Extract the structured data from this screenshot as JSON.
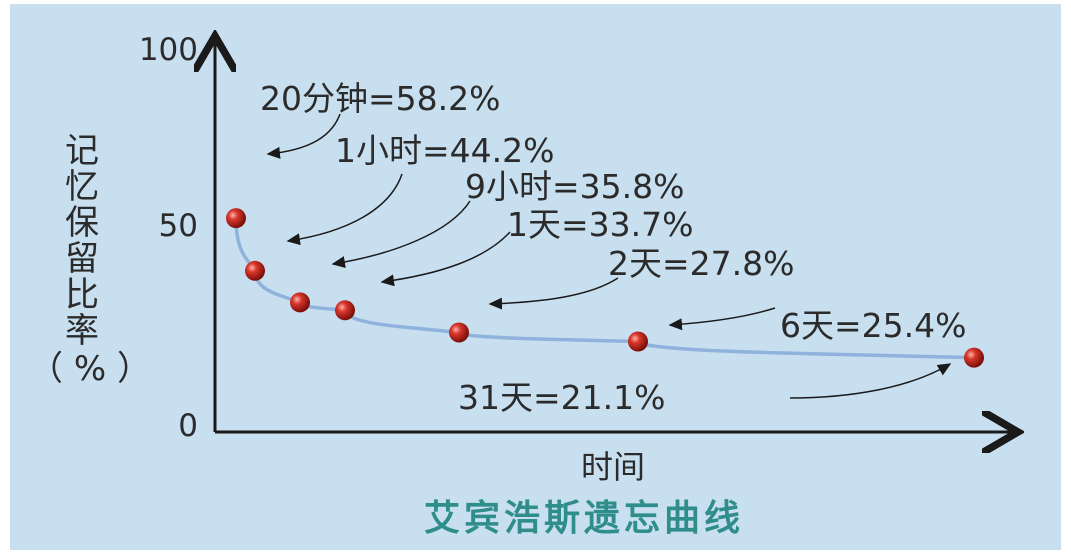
{
  "chart_data": {
    "type": "line",
    "title": "艾宾浩斯遗忘曲线",
    "xlabel": "时间",
    "ylabel_chars": [
      "记",
      "忆",
      "保",
      "留",
      "比",
      "率"
    ],
    "ylabel_unit": "（ % ）",
    "yticks": [
      "0",
      "50",
      "100"
    ],
    "ylim": [
      0,
      100
    ],
    "x": [
      "20分钟",
      "1小时",
      "9小时",
      "1天",
      "2天",
      "6天",
      "31天"
    ],
    "y": [
      58.2,
      44.2,
      35.8,
      33.7,
      27.8,
      25.4,
      21.1
    ],
    "annotations": [
      "20分钟=58.2%",
      "1小时=44.2%",
      "9小时=35.8%",
      "1天=33.7%",
      "2天=27.8%",
      "6天=25.4%",
      "31天=21.1%"
    ],
    "colors": {
      "background": "#c8dff0",
      "curve": "#8fb3dc",
      "point": "#c0271f",
      "axis": "#1a1a1a",
      "title": "#2f8d8b"
    }
  }
}
